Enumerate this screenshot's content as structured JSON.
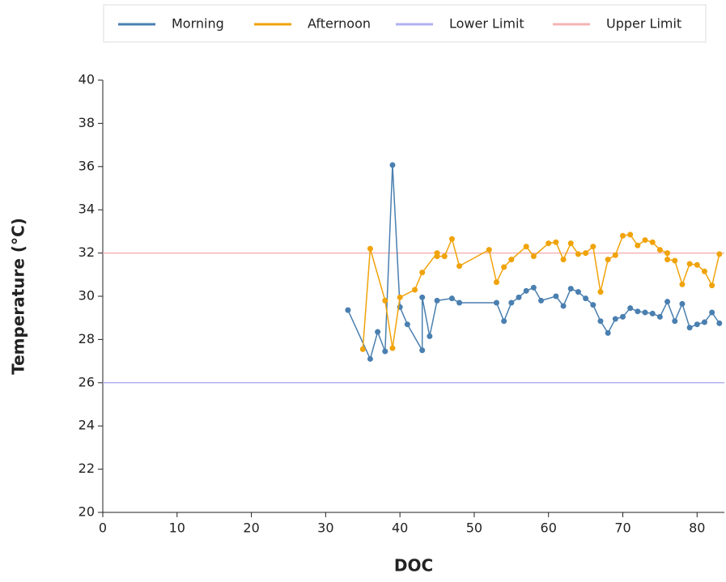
{
  "chart_data": {
    "type": "line",
    "x_label": "DOC",
    "y_label": "Temperature (°C)",
    "xlim": [
      0,
      84
    ],
    "xticks": [
      0,
      10,
      20,
      30,
      40,
      50,
      60,
      70,
      80
    ],
    "ylim": [
      20,
      40
    ],
    "yticks": [
      20,
      22,
      24,
      26,
      28,
      30,
      32,
      34,
      36,
      38,
      40
    ],
    "series": [
      {
        "name": "Morning",
        "color": "#4a7fb0",
        "x": [
          33,
          36,
          37,
          38,
          39,
          40,
          41,
          43,
          43,
          44,
          45,
          47,
          48,
          53,
          54,
          55,
          56,
          57,
          58,
          59,
          61,
          62,
          63,
          64,
          65,
          66,
          67,
          68,
          69,
          70,
          71,
          72,
          73,
          74,
          75,
          76,
          77,
          78,
          79,
          80,
          81,
          82,
          83
        ],
        "values": [
          29.36,
          27.1,
          28.35,
          27.45,
          36.07,
          29.5,
          28.7,
          27.5,
          29.95,
          28.15,
          29.8,
          29.9,
          29.7,
          29.7,
          28.85,
          29.7,
          29.95,
          30.25,
          30.4,
          29.8,
          30.0,
          29.55,
          30.35,
          30.2,
          29.9,
          29.6,
          28.85,
          28.3,
          28.95,
          29.05,
          29.45,
          29.3,
          29.25,
          29.2,
          29.05,
          29.75,
          28.85,
          29.65,
          28.55,
          28.7,
          28.8,
          29.25,
          28.75
        ]
      },
      {
        "name": "Afternoon",
        "color": "#f0a30a",
        "x": [
          35,
          36,
          38,
          39,
          40,
          42,
          43,
          45,
          45,
          46,
          47,
          48,
          52,
          53,
          54,
          55,
          57,
          58,
          60,
          61,
          62,
          63,
          64,
          65,
          66,
          67,
          68,
          69,
          70,
          71,
          72,
          73,
          74,
          75,
          76,
          76,
          77,
          78,
          79,
          80,
          81,
          82,
          83
        ],
        "values": [
          27.55,
          32.2,
          29.8,
          27.6,
          29.95,
          30.3,
          31.1,
          32.0,
          31.85,
          31.85,
          32.65,
          31.4,
          32.15,
          30.65,
          31.35,
          31.7,
          32.3,
          31.85,
          32.45,
          32.5,
          31.7,
          32.45,
          31.95,
          32.0,
          32.3,
          30.2,
          31.7,
          31.9,
          32.8,
          32.85,
          32.35,
          32.6,
          32.5,
          32.15,
          32.0,
          31.7,
          31.65,
          30.55,
          31.5,
          31.45,
          31.15,
          30.5,
          31.95
        ]
      }
    ],
    "reference_lines": [
      {
        "name": "Lower Limit",
        "color": "#b0b0f0",
        "value": 26
      },
      {
        "name": "Upper Limit",
        "color": "#f4b4b4",
        "value": 32
      }
    ]
  }
}
